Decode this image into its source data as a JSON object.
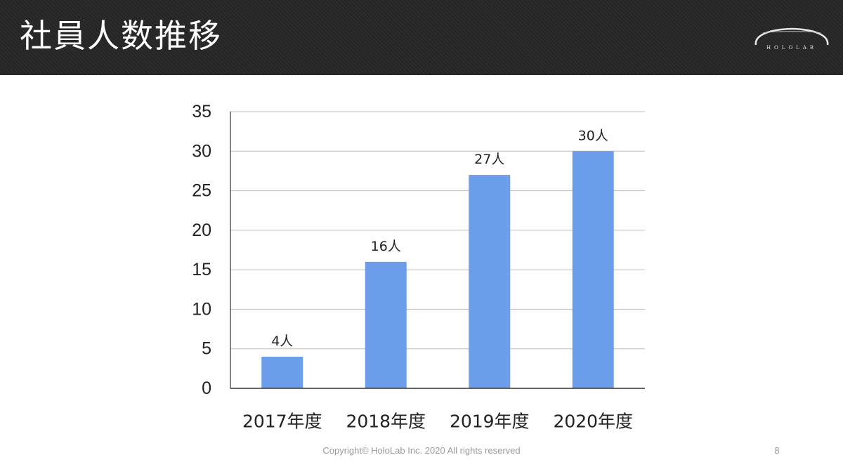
{
  "slide": {
    "title": "社員人数推移",
    "logo_text": "HOLOLAB",
    "footer": "Copyright© HoloLab Inc. 2020 All rights reserved",
    "page_number": "8"
  },
  "colors": {
    "header_bg": "#262626",
    "bar": "#6d9eeb",
    "grid": "#bdbdbd",
    "axis": "#333333",
    "text": "#222222"
  },
  "chart_data": {
    "type": "bar",
    "categories": [
      "2017年度",
      "2018年度",
      "2019年度",
      "2020年度"
    ],
    "values": [
      4,
      16,
      27,
      30
    ],
    "data_labels": [
      "4人",
      "16人",
      "27人",
      "30人"
    ],
    "title": "",
    "xlabel": "",
    "ylabel": "",
    "ylim": [
      0,
      35
    ],
    "yticks": [
      0,
      5,
      10,
      15,
      20,
      25,
      30,
      35
    ],
    "grid": true,
    "legend": "none"
  }
}
